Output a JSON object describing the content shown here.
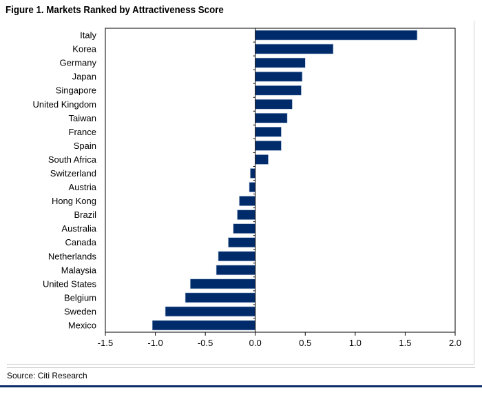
{
  "chart_data": {
    "type": "bar",
    "orientation": "horizontal",
    "title": "Figure 1. Markets Ranked by Attractiveness Score",
    "categories": [
      "Italy",
      "Korea",
      "Germany",
      "Japan",
      "Singapore",
      "United Kingdom",
      "Taiwan",
      "France",
      "Spain",
      "South Africa",
      "Switzerland",
      "Austria",
      "Hong Kong",
      "Brazil",
      "Australia",
      "Canada",
      "Netherlands",
      "Malaysia",
      "United States",
      "Belgium",
      "Sweden",
      "Mexico"
    ],
    "values": [
      1.62,
      0.78,
      0.5,
      0.47,
      0.46,
      0.37,
      0.32,
      0.26,
      0.26,
      0.13,
      -0.05,
      -0.06,
      -0.16,
      -0.18,
      -0.22,
      -0.27,
      -0.37,
      -0.39,
      -0.65,
      -0.7,
      -0.9,
      -1.03
    ],
    "xlim": [
      -1.5,
      2.0
    ],
    "xticks": [
      "-1.5",
      "-1.0",
      "-0.5",
      "0.0",
      "0.5",
      "1.0",
      "1.5",
      "2.0"
    ],
    "xtick_values": [
      -1.5,
      -1.0,
      -0.5,
      0.0,
      0.5,
      1.0,
      1.5,
      2.0
    ],
    "xlabel": "",
    "ylabel": "",
    "grid": false,
    "bar_color": "#002b6b"
  },
  "footer": {
    "source": "Source: Citi Research"
  },
  "colors": {
    "rule": "#0a2a66"
  }
}
